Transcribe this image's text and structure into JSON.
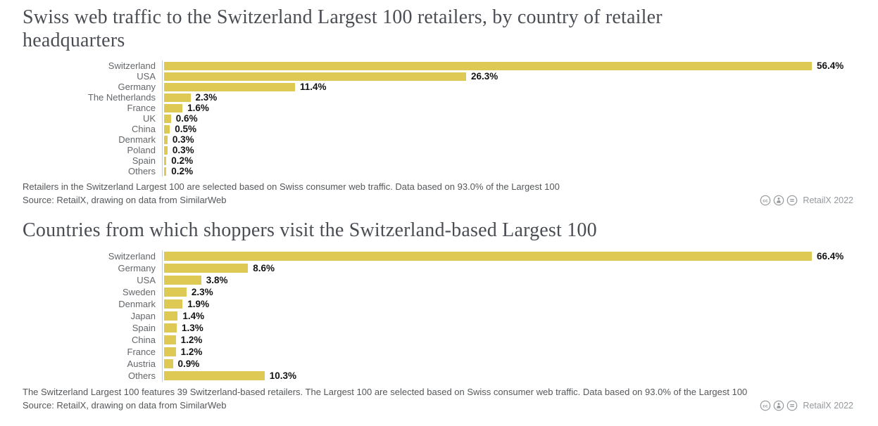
{
  "colors": {
    "bar": "#dec954",
    "title": "#4a4e54",
    "category_label": "#63666a",
    "value_label": "#141414",
    "footnote": "#54575a",
    "credit": "#94999d",
    "axis_line": "#c6ccd2"
  },
  "chart_data": [
    {
      "type": "bar",
      "orientation": "horizontal",
      "title": "Swiss web traffic to the Switzerland Largest 100 retailers, by country of retailer headquarters",
      "categories": [
        "Switzerland",
        "USA",
        "Germany",
        "The Netherlands",
        "France",
        "UK",
        "China",
        "Denmark",
        "Poland",
        "Spain",
        "Others"
      ],
      "values": [
        56.4,
        26.3,
        11.4,
        2.3,
        1.6,
        0.6,
        0.5,
        0.3,
        0.3,
        0.2,
        0.2
      ],
      "value_labels": [
        "56.4%",
        "26.3%",
        "11.4%",
        "2.3%",
        "1.6%",
        "0.6%",
        "0.5%",
        "0.3%",
        "0.3%",
        "0.2%",
        "0.2%"
      ],
      "xlim": [
        0,
        56.4
      ],
      "grid": false,
      "legend": false,
      "footnote": "Retailers in the Switzerland Largest 100 are selected based on Swiss consumer web traffic. Data based on 93.0% of the Largest 100",
      "source": "Source: RetailX, drawing on data from SimilarWeb",
      "credit": "RetailX 2022",
      "license_icons": [
        "cc-icon",
        "cc-by-icon",
        "cc-nd-icon"
      ]
    },
    {
      "type": "bar",
      "orientation": "horizontal",
      "title": "Countries from which shoppers visit the Switzerland-based Largest 100",
      "categories": [
        "Switzerland",
        "Germany",
        "USA",
        "Sweden",
        "Denmark",
        "Japan",
        "Spain",
        "China",
        "France",
        "Austria",
        "Others"
      ],
      "values": [
        66.4,
        8.6,
        3.8,
        2.3,
        1.9,
        1.4,
        1.3,
        1.2,
        1.2,
        0.9,
        10.3
      ],
      "value_labels": [
        "66.4%",
        "8.6%",
        "3.8%",
        "2.3%",
        "1.9%",
        "1.4%",
        "1.3%",
        "1.2%",
        "1.2%",
        "0.9%",
        "10.3%"
      ],
      "xlim": [
        0,
        66.4
      ],
      "grid": false,
      "legend": false,
      "footnote": "The Switzerland Largest 100 features 39 Switzerland-based retailers. The Largest 100 are selected based on Swiss consumer web traffic. Data based on 93.0% of the Largest 100",
      "source": "Source: RetailX, drawing on data from SimilarWeb",
      "credit": "RetailX 2022",
      "license_icons": [
        "cc-icon",
        "cc-by-icon",
        "cc-nd-icon"
      ]
    }
  ]
}
